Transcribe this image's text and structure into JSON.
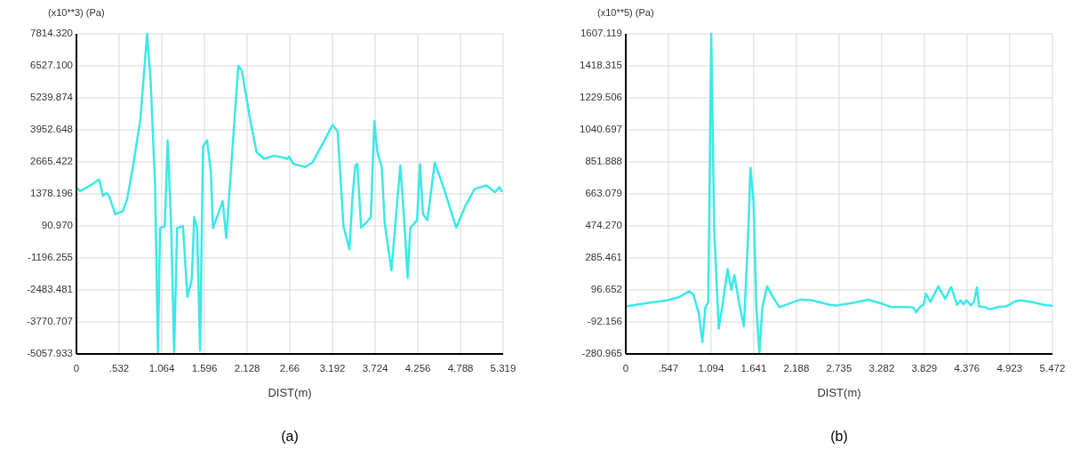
{
  "chart_data": [
    {
      "type": "line",
      "title": "(a)",
      "ylabel": "(x10**3) (Pa)",
      "xlabel": "DIST(m)",
      "color": "#3ce8e8",
      "grid": true,
      "xlim": [
        0,
        5.319
      ],
      "ylim": [
        -5057.933,
        7814.32
      ],
      "xticks": [
        0,
        {
          "value": 0.532,
          "label": ".532"
        },
        1.064,
        1.596,
        2.128,
        2.66,
        3.192,
        3.724,
        4.256,
        4.788,
        5.319
      ],
      "yticks": [
        {
          "value": -5057.933,
          "label": "-5057.933"
        },
        {
          "value": -3770.707,
          "label": "-3770.707"
        },
        {
          "value": -2483.481,
          "label": "-2483.481"
        },
        {
          "value": -1196.255,
          "label": "-1196.255"
        },
        {
          "value": 90.97,
          "label": "90.970"
        },
        {
          "value": 1378.196,
          "label": "1378.196"
        },
        {
          "value": 2665.422,
          "label": "2665.422"
        },
        {
          "value": 3952.648,
          "label": "3952.648"
        },
        {
          "value": 5239.874,
          "label": "5239.874"
        },
        {
          "value": 6527.1,
          "label": "6527.100"
        },
        {
          "value": 7814.32,
          "label": "7814.320"
        }
      ],
      "x": [
        0,
        0.044,
        0.191,
        0.283,
        0.33,
        0.374,
        0.411,
        0.484,
        0.576,
        0.631,
        0.704,
        0.796,
        0.881,
        0.925,
        0.98,
        1.016,
        1.042,
        1.101,
        1.137,
        1.181,
        1.218,
        1.255,
        1.328,
        1.383,
        1.438,
        1.468,
        1.504,
        1.541,
        1.578,
        1.629,
        1.677,
        1.702,
        1.823,
        1.868,
        1.934,
        2.018,
        2.062,
        2.172,
        2.246,
        2.337,
        2.466,
        2.576,
        2.63,
        2.65,
        2.705,
        2.852,
        2.944,
        3.091,
        3.193,
        3.256,
        3.329,
        3.403,
        3.439,
        3.476,
        3.502,
        3.549,
        3.623,
        3.67,
        3.714,
        3.751,
        3.806,
        3.843,
        3.927,
        3.971,
        4.037,
        4.081,
        4.129,
        4.162,
        4.246,
        4.283,
        4.32,
        4.375,
        4.467,
        4.577,
        4.734,
        4.852,
        4.962,
        5.109,
        5.219,
        5.274,
        5.3
      ],
      "values": [
        1630,
        1490,
        1750,
        1960,
        1300,
        1410,
        1270,
        560,
        680,
        1150,
        2460,
        4360,
        7810,
        5910,
        1750,
        -4980,
        0,
        80,
        3530,
        0,
        -4980,
        0,
        80,
        -2770,
        -2060,
        440,
        0,
        -4920,
        3290,
        3530,
        2220,
        0,
        1090,
        -400,
        2700,
        6530,
        6330,
        4250,
        3060,
        2790,
        2910,
        2840,
        2790,
        2880,
        2580,
        2460,
        2640,
        3530,
        4150,
        3890,
        80,
        -850,
        1150,
        2520,
        2580,
        20,
        260,
        440,
        4300,
        3060,
        2460,
        200,
        -1700,
        0,
        2520,
        560,
        -2000,
        0,
        320,
        2580,
        560,
        320,
        2640,
        1630,
        20,
        910,
        1570,
        1720,
        1450,
        1650,
        1490
      ]
    },
    {
      "type": "line",
      "title": "(b)",
      "ylabel": "(x10**5) (Pa)",
      "xlabel": "DIST(m)",
      "color": "#3ce8e8",
      "grid": true,
      "xlim": [
        0,
        5.472
      ],
      "ylim": [
        -280.965,
        1607.119
      ],
      "xticks": [
        0,
        {
          "value": 0.547,
          "label": ".547"
        },
        1.094,
        1.641,
        2.188,
        2.735,
        3.282,
        3.829,
        4.376,
        4.923,
        5.472
      ],
      "yticks": [
        {
          "value": -280.965,
          "label": "-280.965"
        },
        {
          "value": -92.156,
          "label": "-92.156"
        },
        {
          "value": 96.652,
          "label": "96.652"
        },
        {
          "value": 285.461,
          "label": "285.461"
        },
        {
          "value": 474.27,
          "label": "474.270"
        },
        {
          "value": 663.079,
          "label": "663.079"
        },
        {
          "value": 851.888,
          "label": "851.888"
        },
        {
          "value": 1040.697,
          "label": "1040.697"
        },
        {
          "value": 1229.506,
          "label": "1229.506"
        },
        {
          "value": 1418.315,
          "label": "1418.315"
        },
        {
          "value": 1607.119,
          "label": "1607.119"
        }
      ],
      "x": [
        0,
        0.259,
        0.525,
        0.678,
        0.811,
        0.868,
        0.937,
        0.982,
        1.02,
        1.058,
        1.096,
        1.134,
        1.192,
        1.241,
        1.306,
        1.355,
        1.393,
        1.458,
        1.515,
        1.572,
        1.599,
        1.637,
        1.675,
        1.713,
        1.751,
        1.812,
        1.877,
        1.972,
        2.239,
        2.391,
        2.619,
        2.695,
        2.886,
        3.114,
        3.267,
        3.4,
        3.648,
        3.693,
        3.724,
        3.781,
        3.819,
        3.849,
        3.906,
        4.009,
        4.096,
        4.172,
        4.249,
        4.294,
        4.332,
        4.37,
        4.427,
        4.465,
        4.503,
        4.53,
        4.599,
        4.675,
        4.77,
        4.884,
        4.998,
        5.074,
        5.227,
        5.36,
        5.466
      ],
      "values": [
        0,
        18,
        35,
        53,
        88,
        70,
        -44,
        -211,
        -9,
        26,
        1607,
        448,
        -132,
        9,
        220,
        97,
        184,
        9,
        -118,
        448,
        817,
        623,
        -9,
        -276,
        -9,
        118,
        61,
        -5,
        40,
        35,
        9,
        5,
        18,
        39,
        18,
        -4,
        -5,
        -9,
        -35,
        0,
        9,
        75,
        26,
        118,
        44,
        114,
        9,
        35,
        12,
        35,
        5,
        26,
        111,
        0,
        -4,
        -18,
        -4,
        0,
        30,
        35,
        23,
        9,
        4
      ]
    }
  ]
}
